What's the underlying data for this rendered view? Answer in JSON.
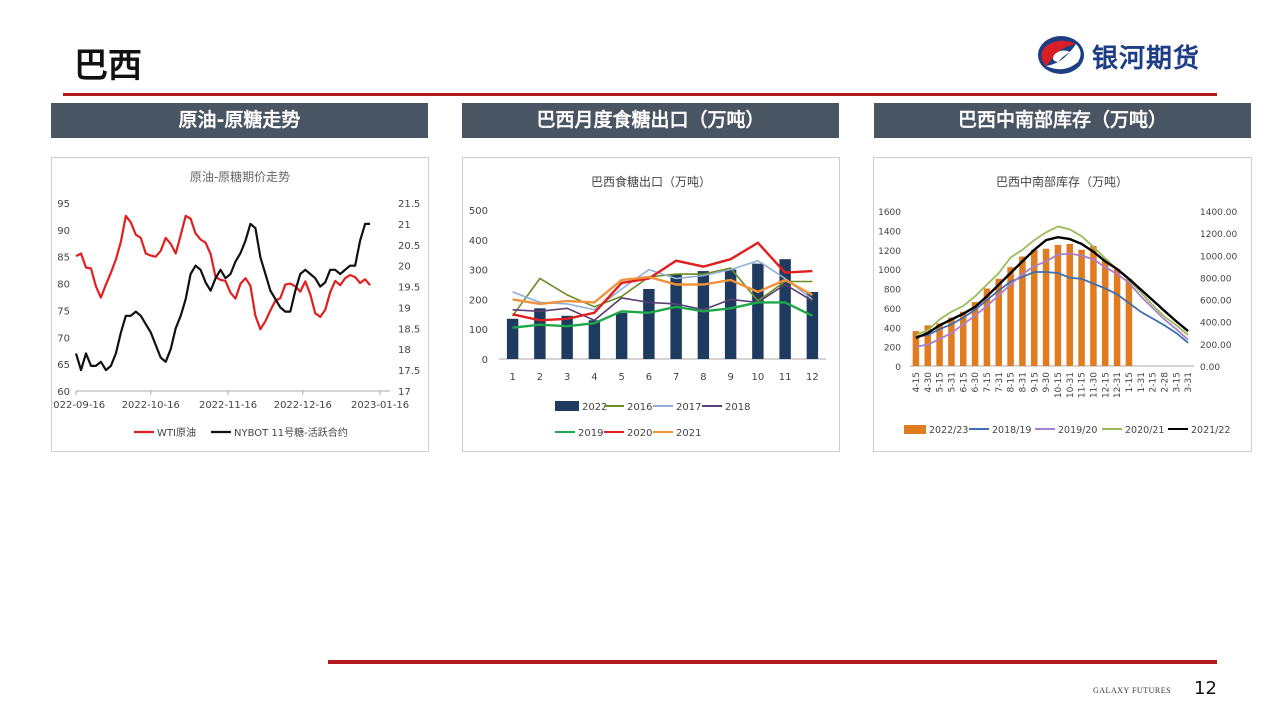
{
  "page": {
    "title": "巴西",
    "logo_text": "银河期货",
    "footer_brand": "GALAXY FUTURES",
    "page_number": "12",
    "accent_color": "#b31b1b",
    "header_color": "#4a5563"
  },
  "panels": [
    {
      "header": "原油-原糖走势"
    },
    {
      "header": "巴西月度食糖出口（万吨）"
    },
    {
      "header": "巴西中南部库存（万吨）"
    }
  ],
  "chart_data": [
    {
      "type": "line",
      "title": "原油-原糖期价走势",
      "x_ticks": [
        "2022-09-16",
        "2022-10-16",
        "2022-11-16",
        "2022-12-16",
        "2023-01-16"
      ],
      "x_range": [
        "2022-09-16",
        "2023-01-20"
      ],
      "y_left": {
        "range": [
          60,
          95
        ],
        "ticks": [
          60,
          65,
          70,
          75,
          80,
          85,
          90,
          95
        ]
      },
      "y_right": {
        "range": [
          17,
          21.5
        ],
        "ticks": [
          "17",
          "17.5",
          "18",
          "18.5",
          "19",
          "19.5",
          "20",
          "20.5",
          "21",
          "21.5"
        ]
      },
      "series": [
        {
          "name": "WTI原油",
          "axis": "left",
          "color": "#e02020",
          "points": [
            [
              0,
              85.1
            ],
            [
              2,
              85.6
            ],
            [
              4,
              83.0
            ],
            [
              6,
              82.8
            ],
            [
              8,
              79.5
            ],
            [
              10,
              77.4
            ],
            [
              12,
              79.8
            ],
            [
              14,
              82.0
            ],
            [
              16,
              84.5
            ],
            [
              18,
              87.8
            ],
            [
              20,
              92.6
            ],
            [
              22,
              91.4
            ],
            [
              24,
              89.1
            ],
            [
              26,
              88.5
            ],
            [
              28,
              85.6
            ],
            [
              30,
              85.2
            ],
            [
              32,
              85.0
            ],
            [
              34,
              86.1
            ],
            [
              36,
              88.5
            ],
            [
              38,
              87.4
            ],
            [
              40,
              85.6
            ],
            [
              42,
              89.0
            ],
            [
              44,
              92.6
            ],
            [
              46,
              92.1
            ],
            [
              48,
              89.3
            ],
            [
              50,
              88.2
            ],
            [
              52,
              87.6
            ],
            [
              54,
              85.5
            ],
            [
              56,
              81.2
            ],
            [
              58,
              80.7
            ],
            [
              60,
              80.5
            ],
            [
              62,
              78.3
            ],
            [
              64,
              77.2
            ],
            [
              66,
              80.0
            ],
            [
              68,
              81.0
            ],
            [
              70,
              79.6
            ],
            [
              72,
              74.0
            ],
            [
              74,
              71.5
            ],
            [
              76,
              73.0
            ],
            [
              78,
              75.0
            ],
            [
              80,
              76.8
            ],
            [
              82,
              77.3
            ],
            [
              84,
              79.8
            ],
            [
              86,
              80.0
            ],
            [
              88,
              79.5
            ],
            [
              90,
              78.5
            ],
            [
              92,
              80.4
            ],
            [
              94,
              78.0
            ],
            [
              96,
              74.5
            ],
            [
              98,
              73.8
            ],
            [
              100,
              75.1
            ],
            [
              102,
              78.4
            ],
            [
              104,
              80.5
            ],
            [
              106,
              79.7
            ],
            [
              108,
              81.0
            ],
            [
              110,
              81.6
            ],
            [
              112,
              81.2
            ],
            [
              114,
              80.1
            ],
            [
              116,
              80.8
            ],
            [
              118,
              79.7
            ]
          ]
        },
        {
          "name": "NYBOT 11号糖-活跃合约",
          "axis": "right",
          "color": "#111111",
          "points": [
            [
              0,
              17.9
            ],
            [
              2,
              17.5
            ],
            [
              4,
              17.9
            ],
            [
              6,
              17.6
            ],
            [
              8,
              17.6
            ],
            [
              10,
              17.7
            ],
            [
              12,
              17.5
            ],
            [
              14,
              17.6
            ],
            [
              16,
              17.9
            ],
            [
              18,
              18.4
            ],
            [
              20,
              18.8
            ],
            [
              22,
              18.8
            ],
            [
              24,
              18.9
            ],
            [
              26,
              18.8
            ],
            [
              28,
              18.6
            ],
            [
              30,
              18.4
            ],
            [
              32,
              18.1
            ],
            [
              34,
              17.8
            ],
            [
              36,
              17.7
            ],
            [
              38,
              18.0
            ],
            [
              40,
              18.5
            ],
            [
              42,
              18.8
            ],
            [
              44,
              19.2
            ],
            [
              46,
              19.8
            ],
            [
              48,
              20.0
            ],
            [
              50,
              19.9
            ],
            [
              52,
              19.6
            ],
            [
              54,
              19.4
            ],
            [
              56,
              19.7
            ],
            [
              58,
              19.9
            ],
            [
              60,
              19.7
            ],
            [
              62,
              19.8
            ],
            [
              64,
              20.1
            ],
            [
              66,
              20.3
            ],
            [
              68,
              20.6
            ],
            [
              70,
              21.0
            ],
            [
              72,
              20.9
            ],
            [
              74,
              20.2
            ],
            [
              76,
              19.8
            ],
            [
              78,
              19.4
            ],
            [
              80,
              19.2
            ],
            [
              82,
              19.0
            ],
            [
              84,
              18.9
            ],
            [
              86,
              18.9
            ],
            [
              88,
              19.4
            ],
            [
              90,
              19.8
            ],
            [
              92,
              19.9
            ],
            [
              94,
              19.8
            ],
            [
              96,
              19.7
            ],
            [
              98,
              19.5
            ],
            [
              100,
              19.6
            ],
            [
              102,
              19.9
            ],
            [
              104,
              19.9
            ],
            [
              106,
              19.8
            ],
            [
              108,
              19.9
            ],
            [
              110,
              20.0
            ],
            [
              112,
              20.0
            ],
            [
              114,
              20.6
            ],
            [
              116,
              21.0
            ],
            [
              118,
              21.0
            ]
          ]
        }
      ]
    },
    {
      "type": "bar",
      "title": "巴西食糖出口（万吨）",
      "categories": [
        "1",
        "2",
        "3",
        "4",
        "5",
        "6",
        "7",
        "8",
        "9",
        "10",
        "11",
        "12"
      ],
      "ylim": [
        0,
        500
      ],
      "y_ticks": [
        0,
        100,
        200,
        300,
        400,
        500
      ],
      "bar_series": {
        "name": "2022",
        "color": "#1f3a5f",
        "values": [
          135,
          170,
          145,
          130,
          155,
          235,
          285,
          295,
          300,
          320,
          335,
          225
        ]
      },
      "series": [
        {
          "name": "2016",
          "color": "#6b8e23",
          "values": [
            145,
            270,
            215,
            175,
            210,
            275,
            285,
            285,
            305,
            195,
            260,
            260
          ]
        },
        {
          "name": "2017",
          "color": "#8fb0d8",
          "values": [
            225,
            190,
            185,
            165,
            235,
            300,
            270,
            280,
            300,
            330,
            270,
            200
          ]
        },
        {
          "name": "2018",
          "color": "#5b3e73",
          "values": [
            165,
            160,
            170,
            130,
            205,
            190,
            185,
            165,
            200,
            190,
            250,
            195
          ]
        },
        {
          "name": "2019",
          "color": "#1ea84a",
          "values": [
            105,
            115,
            110,
            120,
            160,
            155,
            175,
            160,
            170,
            190,
            190,
            145
          ]
        },
        {
          "name": "2020",
          "color": "#e02020",
          "values": [
            150,
            130,
            135,
            155,
            255,
            270,
            330,
            310,
            335,
            390,
            290,
            295
          ]
        },
        {
          "name": "2021",
          "color": "#f0923a",
          "values": [
            200,
            185,
            195,
            190,
            265,
            275,
            250,
            250,
            265,
            225,
            265,
            215
          ]
        }
      ]
    },
    {
      "type": "bar",
      "title": "巴西中南部库存（万吨）",
      "categories": [
        "4-15",
        "4-30",
        "5-15",
        "5-31",
        "6-15",
        "6-30",
        "7-15",
        "7-31",
        "8-15",
        "8-31",
        "9-15",
        "9-30",
        "10-15",
        "10-31",
        "11-15",
        "11-30",
        "12-15",
        "12-31",
        "1-15",
        "1-31",
        "2-15",
        "2-28",
        "3-15",
        "3-31"
      ],
      "y_left": {
        "range": [
          0,
          1600
        ],
        "ticks": [
          "0",
          "200",
          "400",
          "600",
          "800",
          "1000",
          "1200",
          "1400",
          "1600"
        ]
      },
      "y_right": {
        "range": [
          0,
          1400
        ],
        "ticks": [
          "0.00",
          "200.00",
          "400.00",
          "600.00",
          "800.00",
          "1000.00",
          "1200.00",
          "1400.00"
        ]
      },
      "bar_series": {
        "name": "2022/23",
        "color": "#e07b1f",
        "axis": "left",
        "values": [
          360,
          420,
          440,
          500,
          560,
          660,
          800,
          900,
          1020,
          1130,
          1200,
          1210,
          1250,
          1260,
          1200,
          1240,
          1100,
          1000,
          900
        ]
      },
      "series": [
        {
          "name": "2018/19",
          "color": "#3d6fb0",
          "axis": "left",
          "values": [
            300,
            320,
            380,
            430,
            500,
            580,
            680,
            780,
            870,
            920,
            970,
            970,
            960,
            910,
            900,
            850,
            800,
            740,
            650,
            560,
            490,
            420,
            340,
            240
          ]
        },
        {
          "name": "2019/20",
          "color": "#a97fcf",
          "axis": "left",
          "values": [
            200,
            220,
            280,
            340,
            430,
            520,
            620,
            730,
            840,
            950,
            1030,
            1080,
            1150,
            1160,
            1140,
            1100,
            1020,
            950,
            860,
            720,
            600,
            480,
            380,
            270
          ]
        },
        {
          "name": "2020/21",
          "color": "#9bbb59",
          "axis": "left",
          "values": [
            320,
            370,
            480,
            560,
            620,
            720,
            840,
            960,
            1120,
            1200,
            1300,
            1380,
            1440,
            1410,
            1340,
            1230,
            1110,
            1000,
            890,
            760,
            630,
            510,
            420,
            320
          ]
        },
        {
          "name": "2021/22",
          "color": "#000000",
          "axis": "left",
          "values": [
            290,
            340,
            420,
            480,
            540,
            610,
            720,
            840,
            960,
            1080,
            1200,
            1300,
            1330,
            1310,
            1260,
            1180,
            1080,
            1000,
            900,
            790,
            680,
            570,
            460,
            360
          ]
        }
      ]
    }
  ]
}
